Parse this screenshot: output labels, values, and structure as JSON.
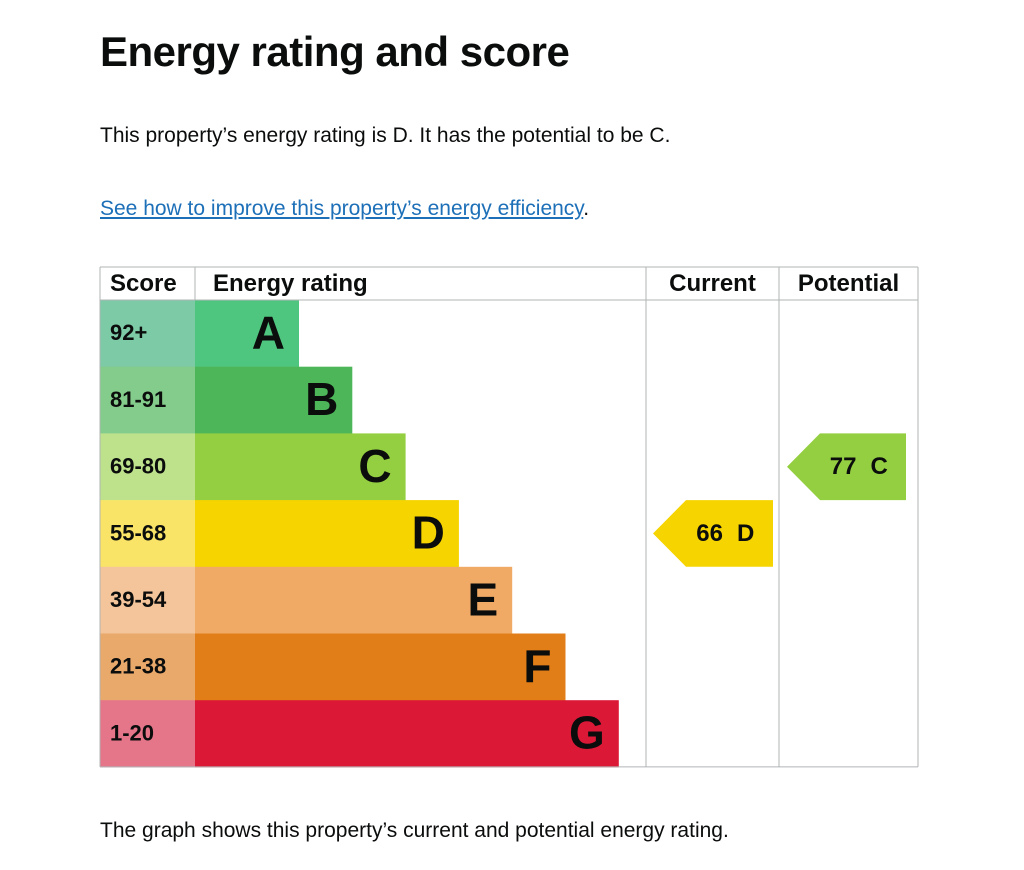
{
  "heading": "Energy rating and score",
  "intro": "This property’s energy rating is D. It has the potential to be C.",
  "link": {
    "text": "See how to improve this property’s energy efficiency",
    "suffix": "."
  },
  "table": {
    "headers": [
      "Score",
      "Energy rating",
      "Current",
      "Potential"
    ],
    "rows": [
      {
        "score": "92+",
        "band": "A",
        "color": "#4fc67f",
        "score_color": "#7ccaa6"
      },
      {
        "score": "81-91",
        "band": "B",
        "color": "#4cb659",
        "score_color": "#84cc8b"
      },
      {
        "score": "69-80",
        "band": "C",
        "color": "#94cf41",
        "score_color": "#bde28b"
      },
      {
        "score": "55-68",
        "band": "D",
        "color": "#f6d400",
        "score_color": "#f9e467"
      },
      {
        "score": "39-54",
        "band": "E",
        "color": "#f0aa65",
        "score_color": "#f4c59a"
      },
      {
        "score": "21-38",
        "band": "F",
        "color": "#e27e18",
        "score_color": "#e9a96b"
      },
      {
        "score": "1-20",
        "band": "G",
        "color": "#db1937",
        "score_color": "#e5768a"
      }
    ]
  },
  "current": {
    "score": 66,
    "band": "D"
  },
  "potential": {
    "score": 77,
    "band": "C"
  },
  "footer": "The graph shows this property’s current and potential energy rating."
}
